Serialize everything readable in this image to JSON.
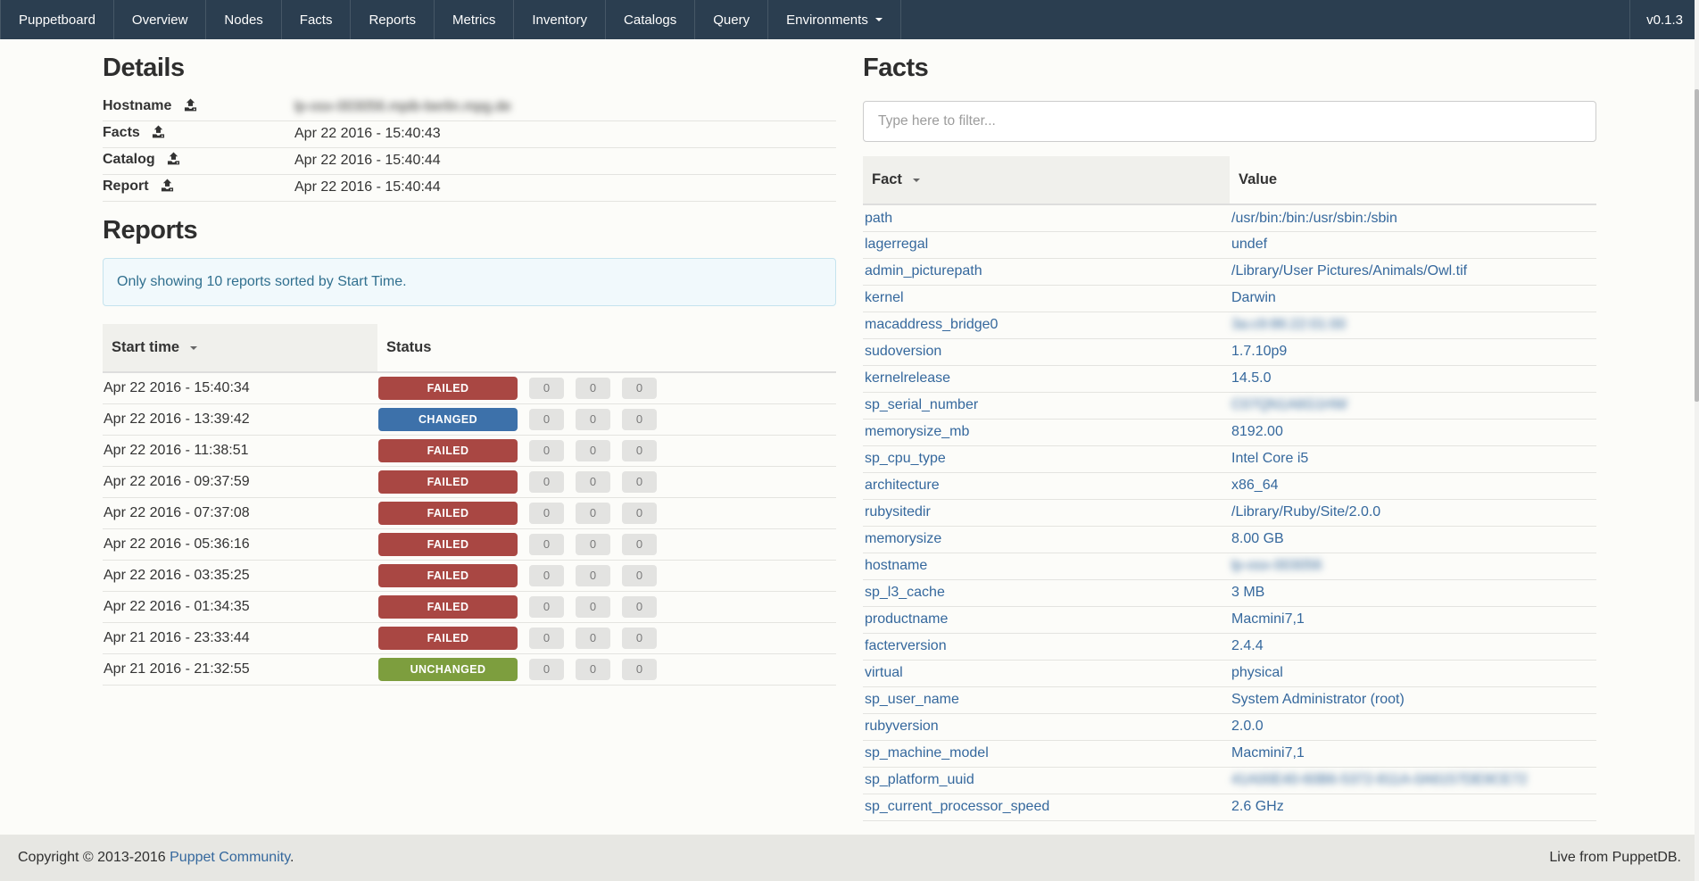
{
  "navbar": {
    "brand": "Puppetboard",
    "items": [
      "Overview",
      "Nodes",
      "Facts",
      "Reports",
      "Metrics",
      "Inventory",
      "Catalogs",
      "Query"
    ],
    "dropdown_label": "Environments",
    "version": "v0.1.3"
  },
  "details": {
    "title": "Details",
    "rows": [
      {
        "label": "Hostname",
        "value": "lp-osx-003056.mpib-berlin.mpg.de",
        "blurred": true,
        "icon": false
      },
      {
        "label": "Facts",
        "value": "Apr 22 2016 - 15:40:43",
        "blurred": false,
        "icon": true
      },
      {
        "label": "Catalog",
        "value": "Apr 22 2016 - 15:40:44",
        "blurred": false,
        "icon": true
      },
      {
        "label": "Report",
        "value": "Apr 22 2016 - 15:40:44",
        "blurred": false,
        "icon": true
      }
    ]
  },
  "reports": {
    "title": "Reports",
    "alert": "Only showing 10 reports sorted by Start Time.",
    "columns": {
      "start_time": "Start time",
      "status": "Status"
    },
    "rows": [
      {
        "start_time": "Apr 22 2016 - 15:40:34",
        "status": "FAILED",
        "counts": [
          "0",
          "0",
          "0"
        ]
      },
      {
        "start_time": "Apr 22 2016 - 13:39:42",
        "status": "CHANGED",
        "counts": [
          "0",
          "0",
          "0"
        ]
      },
      {
        "start_time": "Apr 22 2016 - 11:38:51",
        "status": "FAILED",
        "counts": [
          "0",
          "0",
          "0"
        ]
      },
      {
        "start_time": "Apr 22 2016 - 09:37:59",
        "status": "FAILED",
        "counts": [
          "0",
          "0",
          "0"
        ]
      },
      {
        "start_time": "Apr 22 2016 - 07:37:08",
        "status": "FAILED",
        "counts": [
          "0",
          "0",
          "0"
        ]
      },
      {
        "start_time": "Apr 22 2016 - 05:36:16",
        "status": "FAILED",
        "counts": [
          "0",
          "0",
          "0"
        ]
      },
      {
        "start_time": "Apr 22 2016 - 03:35:25",
        "status": "FAILED",
        "counts": [
          "0",
          "0",
          "0"
        ]
      },
      {
        "start_time": "Apr 22 2016 - 01:34:35",
        "status": "FAILED",
        "counts": [
          "0",
          "0",
          "0"
        ]
      },
      {
        "start_time": "Apr 21 2016 - 23:33:44",
        "status": "FAILED",
        "counts": [
          "0",
          "0",
          "0"
        ]
      },
      {
        "start_time": "Apr 21 2016 - 21:32:55",
        "status": "UNCHANGED",
        "counts": [
          "0",
          "0",
          "0"
        ]
      }
    ]
  },
  "facts": {
    "title": "Facts",
    "filter_placeholder": "Type here to filter...",
    "columns": {
      "fact": "Fact",
      "value": "Value"
    },
    "rows": [
      {
        "fact": "path",
        "value": "/usr/bin:/bin:/usr/sbin:/sbin",
        "value_blurred": false
      },
      {
        "fact": "lagerregal",
        "value": "undef",
        "value_blurred": false
      },
      {
        "fact": "admin_picturepath",
        "value": "/Library/User Pictures/Animals/Owl.tif",
        "value_blurred": false
      },
      {
        "fact": "kernel",
        "value": "Darwin",
        "value_blurred": false
      },
      {
        "fact": "macaddress_bridge0",
        "value": "3a:c9:86:22:01:00",
        "value_blurred": true
      },
      {
        "fact": "sudoversion",
        "value": "1.7.10p9",
        "value_blurred": false
      },
      {
        "fact": "kernelrelease",
        "value": "14.5.0",
        "value_blurred": false
      },
      {
        "fact": "sp_serial_number",
        "value": "C07QN1A6G1HW",
        "value_blurred": true
      },
      {
        "fact": "memorysize_mb",
        "value": "8192.00",
        "value_blurred": false
      },
      {
        "fact": "sp_cpu_type",
        "value": "Intel Core i5",
        "value_blurred": false
      },
      {
        "fact": "architecture",
        "value": "x86_64",
        "value_blurred": false
      },
      {
        "fact": "rubysitedir",
        "value": "/Library/Ruby/Site/2.0.0",
        "value_blurred": false
      },
      {
        "fact": "memorysize",
        "value": "8.00 GB",
        "value_blurred": false
      },
      {
        "fact": "hostname",
        "value": "lp-osx-003056",
        "value_blurred": true
      },
      {
        "fact": "sp_l3_cache",
        "value": "3 MB",
        "value_blurred": false
      },
      {
        "fact": "productname",
        "value": "Macmini7,1",
        "value_blurred": false
      },
      {
        "fact": "facterversion",
        "value": "2.4.4",
        "value_blurred": false
      },
      {
        "fact": "virtual",
        "value": "physical",
        "value_blurred": false
      },
      {
        "fact": "sp_user_name",
        "value": "System Administrator (root)",
        "value_blurred": false
      },
      {
        "fact": "rubyversion",
        "value": "2.0.0",
        "value_blurred": false
      },
      {
        "fact": "sp_machine_model",
        "value": "Macmini7,1",
        "value_blurred": false
      },
      {
        "fact": "sp_platform_uuid",
        "value": "41A00E40-60B6-5372-811A-0A6157DE9CE72",
        "value_blurred": true
      },
      {
        "fact": "sp_current_processor_speed",
        "value": "2.6 GHz",
        "value_blurred": false
      }
    ]
  },
  "footer": {
    "copyright_prefix": "Copyright © 2013-2016",
    "copyright_link": "Puppet Community",
    "copyright_suffix": ".",
    "right_text": "Live from PuppetDB."
  },
  "colors": {
    "navbar_bg": "#2b3e50",
    "link": "#35689d",
    "status_failed": "#a94743",
    "status_changed": "#3d71aa",
    "status_unchanged": "#7d9e3e",
    "alert_text": "#31708f",
    "alert_bg": "#f1f9fc"
  }
}
